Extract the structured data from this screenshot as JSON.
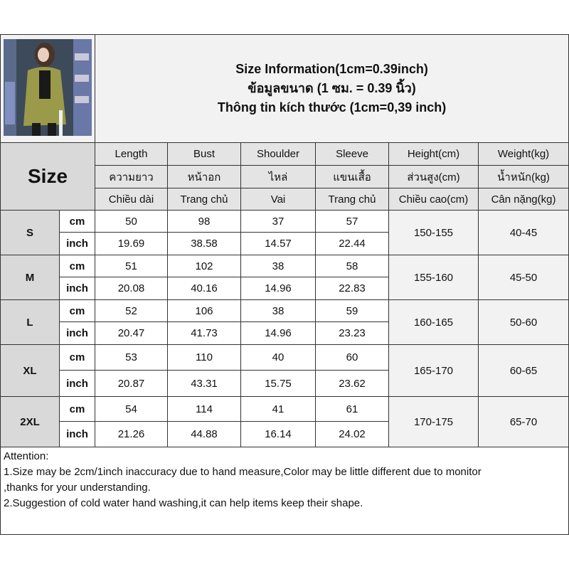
{
  "title": {
    "line_en": "Size Information(1cm=0.39inch)",
    "line_th": "ข้อมูลขนาด (1 ซม. = 0.39 นิ้ว)",
    "line_vi": "Thông tin kích thước (1cm=0,39 inch)"
  },
  "size_label": "Size",
  "columns": [
    {
      "en": "Length",
      "th": "ความยาว",
      "vi": "Chiều dài"
    },
    {
      "en": "Bust",
      "th": "หน้าอก",
      "vi": "Trang chủ"
    },
    {
      "en": "Shoulder",
      "th": "ไหล่",
      "vi": "Vai"
    },
    {
      "en": "Sleeve",
      "th": "แขนเสื้อ",
      "vi": "Trang chủ"
    },
    {
      "en": "Height(cm)",
      "th": "ส่วนสูง(cm)",
      "vi": "Chiều cao(cm)"
    },
    {
      "en": "Weight(kg)",
      "th": "น้ำหนัก(kg)",
      "vi": "Cân nặng(kg)"
    }
  ],
  "units": {
    "cm": "cm",
    "inch": "inch"
  },
  "rows": [
    {
      "size": "S",
      "cm": [
        "50",
        "98",
        "37",
        "57"
      ],
      "inch": [
        "19.69",
        "38.58",
        "14.57",
        "22.44"
      ],
      "height": "150-155",
      "weight": "40-45"
    },
    {
      "size": "M",
      "cm": [
        "51",
        "102",
        "38",
        "58"
      ],
      "inch": [
        "20.08",
        "40.16",
        "14.96",
        "22.83"
      ],
      "height": "155-160",
      "weight": "45-50"
    },
    {
      "size": "L",
      "cm": [
        "52",
        "106",
        "38",
        "59"
      ],
      "inch": [
        "20.47",
        "41.73",
        "14.96",
        "23.23"
      ],
      "height": "160-165",
      "weight": "50-60"
    },
    {
      "size": "XL",
      "cm": [
        "53",
        "110",
        "40",
        "60"
      ],
      "inch": [
        "20.87",
        "43.31",
        "15.75",
        "23.62"
      ],
      "height": "165-170",
      "weight": "60-65"
    },
    {
      "size": "2XL",
      "cm": [
        "54",
        "114",
        "41",
        "61"
      ],
      "inch": [
        "21.26",
        "44.88",
        "16.14",
        "24.02"
      ],
      "height": "170-175",
      "weight": "65-70"
    }
  ],
  "attention": {
    "heading": "Attention:",
    "line1": "1.Size may be 2cm/1inch inaccuracy due to hand measure,Color may be little different due to monitor",
    "line1b": ",thanks for your understanding.",
    "line2": "2.Suggestion of cold water hand washing,it can help items keep their shape."
  },
  "colors": {
    "header_gray": "#d9d9d9",
    "light_gray": "#f2f2f2",
    "jacket": "#9a9a4a"
  }
}
